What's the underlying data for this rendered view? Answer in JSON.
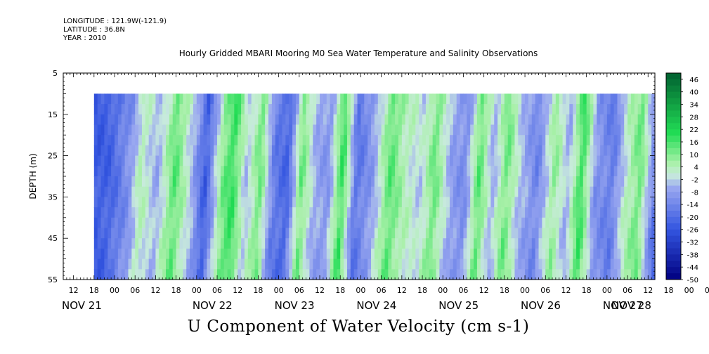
{
  "header": {
    "longitude": "LONGITUDE : 121.9W(-121.9)",
    "latitude": "LATITUDE : 36.8N",
    "year": "YEAR : 2010"
  },
  "chart_data": {
    "type": "heatmap",
    "title": "Hourly Gridded MBARI Mooring M0 Sea Water Temperature and Salinity Observations",
    "xlabel": "U Component of Water Velocity (cm s-1)",
    "ylabel": "DEPTH (m)",
    "ylim": [
      55,
      5
    ],
    "y_ticks": [
      "5",
      "15",
      "25",
      "35",
      "45",
      "55"
    ],
    "x_hour_ticks": [
      "12",
      "18",
      "00",
      "06",
      "12",
      "18",
      "00",
      "06",
      "12",
      "18",
      "00",
      "06",
      "12",
      "18",
      "00",
      "06",
      "12",
      "18",
      "00",
      "06",
      "12",
      "18",
      "00",
      "06",
      "12",
      "18",
      "00",
      "06",
      "12",
      "18",
      "00",
      "06",
      "12"
    ],
    "x_date_labels": [
      "NOV 21",
      "NOV 22",
      "NOV 23",
      "NOV 24",
      "NOV 25",
      "NOV 26",
      "NOV 27",
      "NOV 28"
    ],
    "time_range": [
      "2010-11-21 09:00",
      "2010-11-28 14:00"
    ],
    "data_time_range": [
      "2010-11-21 18:00",
      "2010-11-28 14:00"
    ],
    "data_depth_range": [
      10,
      55
    ],
    "colorbar_labels": [
      "46",
      "40",
      "34",
      "28",
      "22",
      "16",
      "10",
      "4",
      "-2",
      "-8",
      "-14",
      "-20",
      "-26",
      "-32",
      "-38",
      "-44",
      "-50"
    ],
    "colorbar_range": [
      -50,
      49
    ],
    "colors": {
      "strong_negative": "#000080",
      "negative": "#3355e0",
      "weak_negative": "#9aa8f0",
      "weak_positive": "#a8f0a8",
      "positive": "#22dd55",
      "strong_positive": "#006030"
    },
    "vertical_mean_u_profile": {
      "x": [
        "2010-11-21 18:00",
        "2010-11-21 22:00",
        "2010-11-22 04:00",
        "2010-11-22 07:00",
        "2010-11-22 12:00",
        "2010-11-22 17:00",
        "2010-11-22 22:00",
        "2010-11-23 02:00",
        "2010-11-23 07:00",
        "2010-11-23 10:00",
        "2010-11-23 14:00",
        "2010-11-23 18:00",
        "2010-11-23 22:00",
        "2010-11-24 02:00",
        "2010-11-24 06:00",
        "2010-11-24 10:00",
        "2010-11-24 14:00",
        "2010-11-24 18:00",
        "2010-11-24 22:00",
        "2010-11-25 03:00",
        "2010-11-25 08:00",
        "2010-11-25 12:00",
        "2010-11-25 17:00",
        "2010-11-25 21:00",
        "2010-11-26 02:00",
        "2010-11-26 06:00",
        "2010-11-26 10:00",
        "2010-11-26 14:00",
        "2010-11-26 18:00",
        "2010-11-26 22:00",
        "2010-11-27 03:00",
        "2010-11-27 08:00",
        "2010-11-27 12:00",
        "2010-11-27 16:00",
        "2010-11-27 20:00",
        "2010-11-28 01:00",
        "2010-11-28 05:00",
        "2010-11-28 09:00",
        "2010-11-28 14:00"
      ],
      "u": [
        -24,
        -22,
        -10,
        4,
        -6,
        14,
        -4,
        -24,
        10,
        18,
        -4,
        12,
        -16,
        -22,
        12,
        -6,
        -10,
        18,
        -18,
        -8,
        14,
        4,
        -2,
        12,
        -8,
        -12,
        14,
        -6,
        12,
        -4,
        -14,
        8,
        -6,
        18,
        -10,
        -16,
        2,
        12,
        -20
      ]
    }
  }
}
